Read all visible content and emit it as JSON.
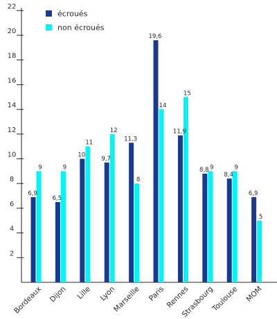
{
  "chart_data": {
    "type": "bar",
    "categories": [
      "Bordeaux",
      "Dijon",
      "Lille",
      "Lyon",
      "Marseille",
      "Paris",
      "Rennes",
      "Strasbourg",
      "Toulouse",
      "MOM"
    ],
    "series": [
      {
        "name": "écroués",
        "color": "#1a3a8f",
        "values": [
          6.9,
          6.5,
          10,
          9.7,
          11.3,
          19.6,
          11.9,
          8.8,
          8.4,
          6.9
        ],
        "labels": [
          "6,9",
          "6,5",
          "10",
          "9,7",
          "11,3",
          "19,6",
          "11,9",
          "8,8",
          "8,4",
          "6,9"
        ]
      },
      {
        "name": "non écroués",
        "color": "#00f5f8",
        "values": [
          9,
          9,
          11,
          12,
          8,
          14,
          15,
          9,
          9,
          5
        ],
        "labels": [
          "9",
          "9",
          "11",
          "12",
          "8",
          "14",
          "15",
          "9",
          "9",
          "5"
        ]
      }
    ],
    "yticks": [
      2,
      4,
      6,
      8,
      10,
      12,
      14,
      16,
      18,
      20,
      22
    ],
    "ylim": [
      0,
      22
    ],
    "grid": false,
    "legend_position": "top-left"
  }
}
